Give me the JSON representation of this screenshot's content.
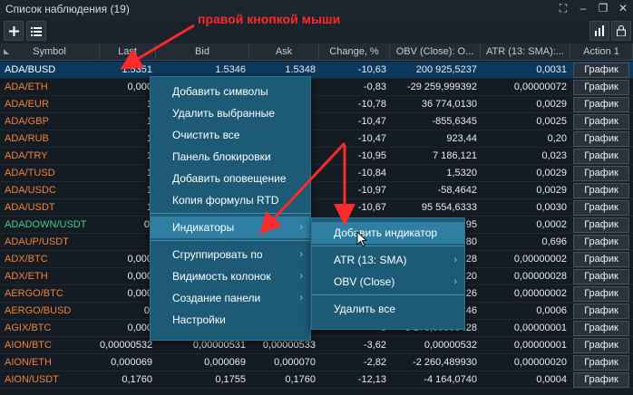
{
  "window": {
    "title": "Список наблюдения (19)"
  },
  "toolbar": {
    "add_icon": "plus-icon",
    "list_icon": "list-icon",
    "chart_icon": "bar-chart-icon",
    "lock_icon": "lock-icon"
  },
  "columns": [
    "Symbol",
    "Last",
    "Bid",
    "Ask",
    "Change, %",
    "OBV (Close): O...",
    "ATR (13: SMA):...",
    "Action 1"
  ],
  "rows": [
    {
      "symbol": "ADA/BUSD",
      "color": "#ffffff",
      "last": "1.5351",
      "bid": "1.5346",
      "ask": "1.5348",
      "change": "-10,63",
      "obv": "200 925,5237",
      "atr": "0,0031",
      "action": "График",
      "selected": true
    },
    {
      "symbol": "ADA/ETH",
      "color": "#f0823c",
      "last": "0,000",
      "bid": "",
      "ask": "",
      "change": "-0,83",
      "obv": "-29 259,999392",
      "atr": "0,00000072",
      "action": "График"
    },
    {
      "symbol": "ADA/EUR",
      "color": "#f0823c",
      "last": "1",
      "bid": "",
      "ask": "",
      "change": "-10,78",
      "obv": "36 774,0130",
      "atr": "0,0029",
      "action": "График"
    },
    {
      "symbol": "ADA/GBP",
      "color": "#f0823c",
      "last": "1",
      "bid": "",
      "ask": "",
      "change": "-10,47",
      "obv": "-855,6345",
      "atr": "0,0025",
      "action": "График"
    },
    {
      "symbol": "ADA/RUB",
      "color": "#f0823c",
      "last": "1",
      "bid": "",
      "ask": "",
      "change": "-10,47",
      "obv": "923,44",
      "atr": "0,20",
      "action": "График"
    },
    {
      "symbol": "ADA/TRY",
      "color": "#f0823c",
      "last": "1",
      "bid": "",
      "ask": "",
      "change": "-10,95",
      "obv": "7 186,121",
      "atr": "0,023",
      "action": "График"
    },
    {
      "symbol": "ADA/TUSD",
      "color": "#f0823c",
      "last": "1",
      "bid": "",
      "ask": "",
      "change": "-10,84",
      "obv": "1,5320",
      "atr": "0,0029",
      "action": "График"
    },
    {
      "symbol": "ADA/USDC",
      "color": "#f0823c",
      "last": "1",
      "bid": "",
      "ask": "",
      "change": "-10,97",
      "obv": "-58,4642",
      "atr": "0,0029",
      "action": "График"
    },
    {
      "symbol": "ADA/USDT",
      "color": "#f0823c",
      "last": "1",
      "bid": "",
      "ask": "",
      "change": "-10,67",
      "obv": "95 554,6333",
      "atr": "0,0030",
      "action": "График"
    },
    {
      "symbol": "ADADOWN/USDT",
      "color": "#3fd08f",
      "last": "0,",
      "bid": "",
      "ask": "",
      "change": "",
      "obv": "95",
      "atr": "0,0002",
      "action": "График"
    },
    {
      "symbol": "ADAUP/USDT",
      "color": "#f0823c",
      "last": "",
      "bid": "",
      "ask": "",
      "change": "",
      "obv": "80",
      "atr": "0,696",
      "action": "График"
    },
    {
      "symbol": "ADX/BTC",
      "color": "#f0823c",
      "last": "0,000",
      "bid": "",
      "ask": "",
      "change": "",
      "obv": "28",
      "atr": "0,00000002",
      "action": "График"
    },
    {
      "symbol": "ADX/ETH",
      "color": "#f0823c",
      "last": "0,000",
      "bid": "",
      "ask": "",
      "change": "",
      "obv": "20",
      "atr": "0,00000028",
      "action": "График"
    },
    {
      "symbol": "AERGO/BTC",
      "color": "#f0823c",
      "last": "0,000",
      "bid": "",
      "ask": "",
      "change": "",
      "obv": "26",
      "atr": "0,00000002",
      "action": "График"
    },
    {
      "symbol": "AERGO/BUSD",
      "color": "#f0823c",
      "last": "0,",
      "bid": "",
      "ask": "",
      "change": "",
      "obv": "46",
      "atr": "0,0006",
      "action": "График"
    },
    {
      "symbol": "AGIX/BTC",
      "color": "#f0823c",
      "last": "0,000",
      "bid": "",
      "ask": "",
      "change": "-3",
      "obv": "-3 175,99999428",
      "atr": "0,00000001",
      "action": "График"
    },
    {
      "symbol": "AION/BTC",
      "color": "#f0823c",
      "last": "0,00000532",
      "bid": "0,00000531",
      "ask": "0,00000533",
      "change": "-3,62",
      "obv": "0,00000532",
      "atr": "0,00000001",
      "action": "График"
    },
    {
      "symbol": "AION/ETH",
      "color": "#f0823c",
      "last": "0,000069",
      "bid": "0,000069",
      "ask": "0,000070",
      "change": "-2,82",
      "obv": "-2 260,489930",
      "atr": "0,00000020",
      "action": "График"
    },
    {
      "symbol": "AION/USDT",
      "color": "#f0823c",
      "last": "0,1760",
      "bid": "0,1755",
      "ask": "0,1760",
      "change": "-12,13",
      "obv": "-4 164,0740",
      "atr": "0,0004",
      "action": "График"
    }
  ],
  "context_menu": {
    "items": [
      {
        "label": "Добавить символы",
        "arrow": false
      },
      {
        "label": "Удалить выбранные",
        "arrow": false
      },
      {
        "label": "Очистить все",
        "arrow": false
      },
      {
        "label": "Панель блокировки",
        "arrow": false
      },
      {
        "label": "Добавить оповещение",
        "arrow": false
      },
      {
        "label": "Копия формулы RTD",
        "arrow": false
      },
      {
        "label": "Индикаторы",
        "arrow": true
      },
      {
        "label": "Сгруппировать по",
        "arrow": true
      },
      {
        "label": "Видимость колонок",
        "arrow": true
      },
      {
        "label": "Создание панели",
        "arrow": true
      },
      {
        "label": "Настройки",
        "arrow": false
      }
    ]
  },
  "submenu": {
    "items": [
      {
        "label": "Добавить индикатор",
        "arrow": false
      },
      {
        "label": "ATR (13: SMA)",
        "arrow": true
      },
      {
        "label": "OBV (Close)",
        "arrow": true
      },
      {
        "label": "Удалить все",
        "arrow": false
      }
    ]
  },
  "annotation": {
    "text": "правой кнопкой мыши",
    "color": "#ff2a2a"
  }
}
